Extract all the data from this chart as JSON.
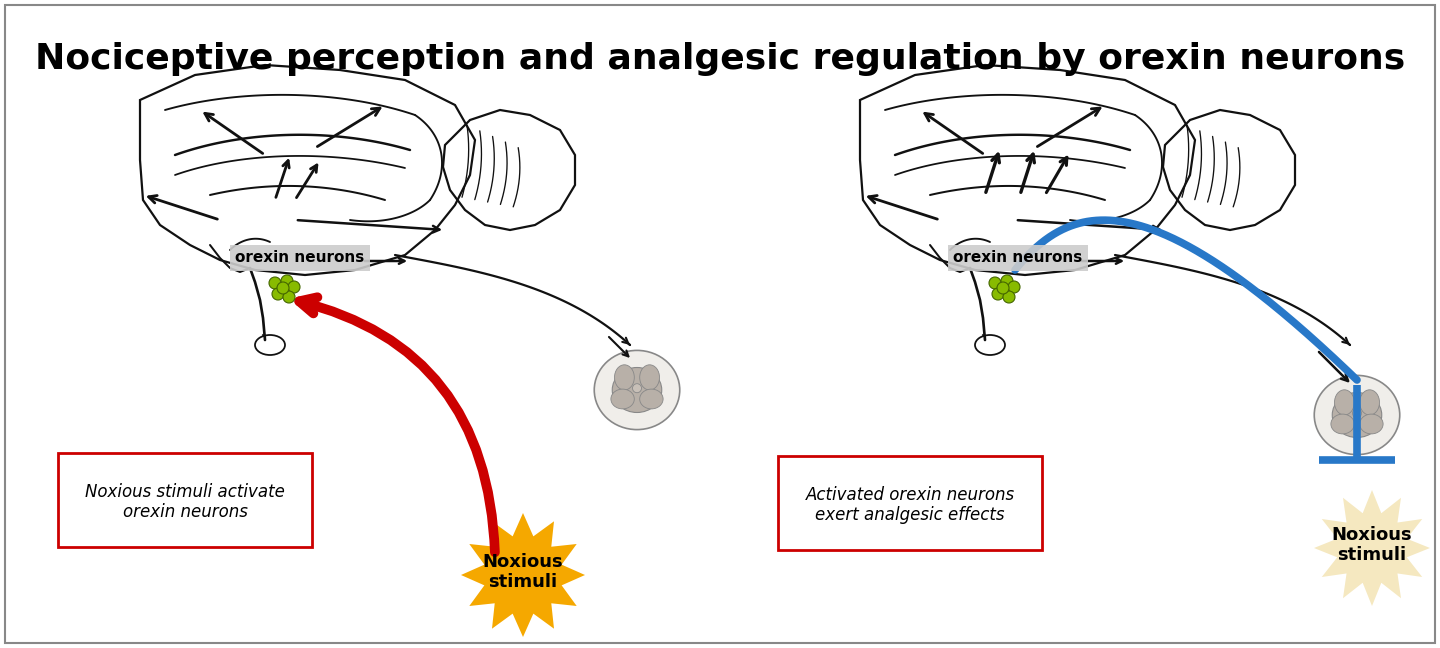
{
  "title": "Nociceptive perception and analgesic regulation by orexin neurons",
  "title_fontsize": 26,
  "title_fontweight": "bold",
  "bg_color": "#ffffff",
  "left_panel": {
    "label_text": "orexin neurons",
    "text_box1": "Noxious stimuli activate\norexin neurons",
    "text_box_color": "#cc0000",
    "noxious_text": "Noxious\nstimuli",
    "noxious_color": "#f5a800",
    "red_arrow_color": "#cc0000"
  },
  "right_panel": {
    "label_text": "orexin neurons",
    "text_box2": "Activated orexin neurons\nexert analgesic effects",
    "text_box_color": "#cc0000",
    "noxious_text": "Noxious\nstimuli",
    "noxious_color": "#f5e8c0",
    "blue_line_color": "#2878c8"
  },
  "neuron_color": "#88bb00",
  "arrow_color": "#000000"
}
